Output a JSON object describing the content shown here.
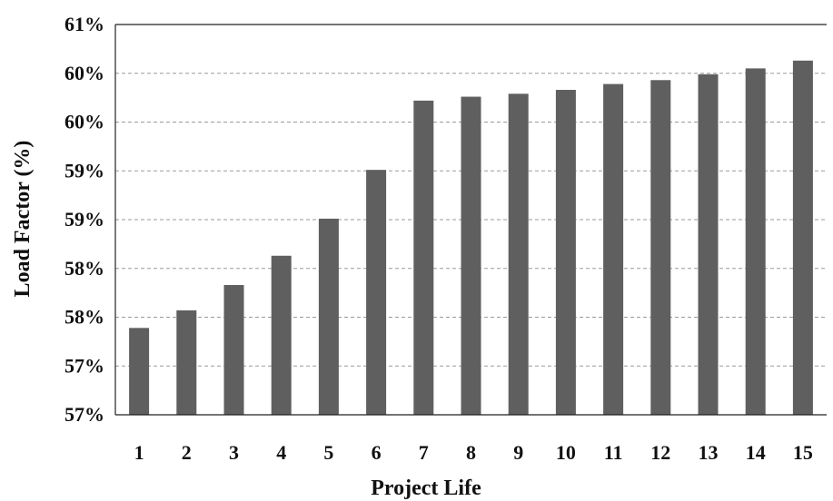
{
  "chart_data": {
    "type": "bar",
    "categories": [
      "1",
      "2",
      "3",
      "4",
      "5",
      "6",
      "7",
      "8",
      "9",
      "10",
      "11",
      "12",
      "13",
      "14",
      "15"
    ],
    "values": [
      57.64,
      57.82,
      58.08,
      58.38,
      58.76,
      59.26,
      59.97,
      60.01,
      60.04,
      60.08,
      60.14,
      60.18,
      60.24,
      60.3,
      60.38
    ],
    "ylim": [
      56.75,
      60.75
    ],
    "yticks": [
      56.75,
      57.25,
      57.75,
      58.25,
      58.75,
      59.25,
      59.75,
      60.25,
      60.75
    ],
    "ytick_labels": [
      "57%",
      "57%",
      "58%",
      "58%",
      "59%",
      "59%",
      "60%",
      "60%",
      "61%"
    ],
    "xlabel": "Project Life",
    "ylabel": "Load Factor (%)",
    "grid": true,
    "bar_color": "#5f5f5f"
  }
}
